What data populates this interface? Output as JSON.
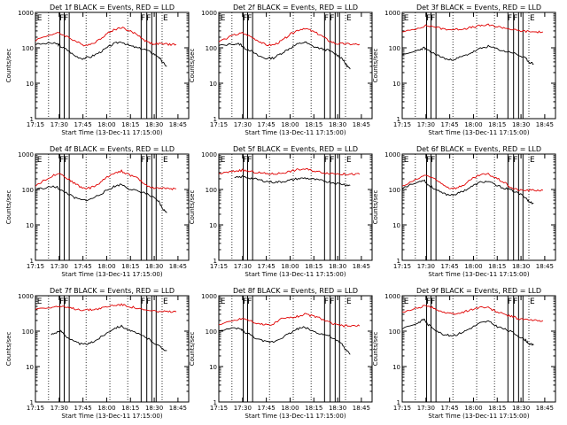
{
  "page": {
    "background": "#ffffff"
  },
  "colors": {
    "events": "#000000",
    "lld": "#e00000",
    "axis": "#000000"
  },
  "chart_data": [
    {
      "type": "line",
      "title": "Det 1f BLACK = Events, RED = LLD",
      "xlabel": "Start Time (13-Dec-11 17:15:00)",
      "ylabel": "Counts/sec",
      "x_ticks": [
        "17:15",
        "17:30",
        "17:45",
        "18:00",
        "18:15",
        "18:30",
        "18:45"
      ],
      "y_scale": "log",
      "ylim": [
        1,
        1000
      ],
      "y_ticks": [
        "1",
        "10",
        "100",
        "1000"
      ],
      "top_markers": [
        "E",
        "F",
        "F",
        "F",
        "F",
        "E"
      ],
      "series": [
        {
          "name": "Events",
          "color": "#000000",
          "x": [
            0.0,
            0.5,
            0.7,
            0.8,
            1.0,
            1.25,
            1.5,
            1.75,
            2.0,
            2.25,
            2.5,
            2.75,
            3.0,
            3.25,
            3.5,
            3.75,
            3.95,
            4.05,
            4.2
          ],
          "y": [
            125,
            135,
            130,
            110,
            90,
            60,
            50,
            55,
            70,
            95,
            130,
            150,
            115,
            100,
            90,
            70,
            55,
            40,
            30
          ]
        },
        {
          "name": "LLD",
          "color": "#e00000",
          "x": [
            0.0,
            0.5,
            0.75,
            1.0,
            1.25,
            1.5,
            1.75,
            2.0,
            2.25,
            2.5,
            2.75,
            3.0,
            3.25,
            3.5,
            3.75,
            4.0,
            4.25,
            4.5
          ],
          "y": [
            165,
            240,
            260,
            210,
            160,
            120,
            125,
            160,
            240,
            320,
            380,
            300,
            240,
            160,
            130,
            130,
            125,
            125
          ]
        }
      ]
    },
    {
      "type": "line",
      "title": "Det 2f BLACK = Events, RED = LLD",
      "xlabel": "Start Time (13-Dec-11 17:15:00)",
      "ylabel": "Counts/sec",
      "x_ticks": [
        "17:15",
        "17:30",
        "17:45",
        "18:00",
        "18:15",
        "18:30",
        "18:45"
      ],
      "y_scale": "log",
      "ylim": [
        1,
        1000
      ],
      "y_ticks": [
        "1",
        "10",
        "100",
        "1000"
      ],
      "top_markers": [
        "E",
        "F",
        "F",
        "F",
        "F",
        "E"
      ],
      "series": [
        {
          "name": "Events",
          "color": "#000000",
          "x": [
            0.0,
            0.5,
            0.7,
            0.8,
            1.0,
            1.25,
            1.5,
            1.75,
            2.0,
            2.25,
            2.5,
            2.75,
            3.0,
            3.25,
            3.5,
            3.75,
            3.95,
            4.05,
            4.2
          ],
          "y": [
            115,
            130,
            125,
            100,
            85,
            60,
            50,
            52,
            70,
            95,
            125,
            145,
            110,
            95,
            85,
            65,
            50,
            35,
            25
          ]
        },
        {
          "name": "LLD",
          "color": "#e00000",
          "x": [
            0.0,
            0.5,
            0.75,
            1.0,
            1.25,
            1.5,
            1.75,
            2.0,
            2.25,
            2.5,
            2.75,
            3.0,
            3.25,
            3.5,
            3.75,
            4.0,
            4.25,
            4.5
          ],
          "y": [
            150,
            230,
            260,
            210,
            160,
            120,
            120,
            155,
            230,
            310,
            360,
            290,
            230,
            160,
            130,
            130,
            125,
            125
          ]
        }
      ]
    },
    {
      "type": "line",
      "title": "Det 3f BLACK = Events, RED = LLD",
      "xlabel": "Start Time (13-Dec-11 17:15:00)",
      "ylabel": "Counts/sec",
      "x_ticks": [
        "17:15",
        "17:30",
        "17:45",
        "18:00",
        "18:15",
        "18:30",
        "18:45"
      ],
      "y_scale": "log",
      "ylim": [
        1,
        1000
      ],
      "y_ticks": [
        "1",
        "10",
        "100",
        "1000"
      ],
      "top_markers": [
        "E",
        "F",
        "F",
        "F",
        "F",
        "E"
      ],
      "series": [
        {
          "name": "Events",
          "color": "#000000",
          "x": [
            0.0,
            0.5,
            0.7,
            0.8,
            1.0,
            1.25,
            1.5,
            1.75,
            2.0,
            2.25,
            2.5,
            2.75,
            3.0,
            3.25,
            3.5,
            3.75,
            3.95,
            4.05,
            4.2
          ],
          "y": [
            60,
            85,
            100,
            85,
            70,
            55,
            45,
            50,
            60,
            75,
            95,
            110,
            95,
            80,
            75,
            60,
            50,
            40,
            35
          ]
        },
        {
          "name": "LLD",
          "color": "#e00000",
          "x": [
            0.0,
            0.5,
            0.75,
            1.0,
            1.25,
            1.5,
            1.75,
            2.0,
            2.25,
            2.5,
            2.75,
            3.0,
            3.25,
            3.5,
            3.75,
            4.0,
            4.25,
            4.5
          ],
          "y": [
            270,
            360,
            420,
            400,
            350,
            330,
            330,
            350,
            380,
            420,
            440,
            400,
            370,
            330,
            300,
            290,
            280,
            280
          ]
        }
      ]
    },
    {
      "type": "line",
      "title": "Det 4f BLACK = Events, RED = LLD",
      "xlabel": "Start Time (13-Dec-11 17:15:00)",
      "ylabel": "Counts/sec",
      "x_ticks": [
        "17:15",
        "17:30",
        "17:45",
        "18:00",
        "18:15",
        "18:30",
        "18:45"
      ],
      "y_scale": "log",
      "ylim": [
        1,
        1000
      ],
      "y_ticks": [
        "1",
        "10",
        "100",
        "1000"
      ],
      "top_markers": [
        "E",
        "F",
        "F",
        "F",
        "F",
        "E"
      ],
      "series": [
        {
          "name": "Events",
          "color": "#000000",
          "x": [
            0.0,
            0.5,
            0.7,
            0.8,
            1.0,
            1.25,
            1.5,
            1.75,
            2.0,
            2.25,
            2.5,
            2.75,
            3.0,
            3.25,
            3.5,
            3.75,
            3.95,
            4.05,
            4.2
          ],
          "y": [
            100,
            120,
            115,
            95,
            80,
            58,
            50,
            52,
            68,
            90,
            120,
            140,
            105,
            90,
            80,
            60,
            45,
            30,
            22
          ]
        },
        {
          "name": "LLD",
          "color": "#e00000",
          "x": [
            0.0,
            0.5,
            0.75,
            1.0,
            1.25,
            1.5,
            1.75,
            2.0,
            2.25,
            2.5,
            2.75,
            3.0,
            3.25,
            3.5,
            3.75,
            4.0,
            4.25,
            4.5
          ],
          "y": [
            130,
            230,
            300,
            210,
            150,
            110,
            110,
            140,
            210,
            290,
            330,
            260,
            210,
            140,
            110,
            110,
            105,
            105
          ]
        }
      ]
    },
    {
      "type": "line",
      "title": "Det 5f BLACK = Events, RED = LLD",
      "xlabel": "Start Time (13-Dec-11 17:15:00)",
      "ylabel": "Counts/sec",
      "x_ticks": [
        "17:15",
        "17:30",
        "17:45",
        "18:00",
        "18:15",
        "18:30",
        "18:45"
      ],
      "y_scale": "log",
      "ylim": [
        1,
        1000
      ],
      "y_ticks": [
        "1",
        "10",
        "100",
        "1000"
      ],
      "top_markers": [
        "E",
        "F",
        "F",
        "F",
        "F",
        "E"
      ],
      "series": [
        {
          "name": "Events",
          "color": "#000000",
          "x": [
            0.5,
            0.75,
            1.0,
            1.25,
            1.5,
            1.75,
            2.0,
            2.25,
            2.5,
            2.75,
            3.0,
            3.25,
            3.5,
            3.75,
            4.0,
            4.2
          ],
          "y": [
            210,
            230,
            210,
            190,
            170,
            160,
            165,
            180,
            200,
            210,
            195,
            180,
            165,
            150,
            140,
            130
          ]
        },
        {
          "name": "LLD",
          "color": "#e00000",
          "x": [
            0.0,
            0.25,
            0.5,
            0.75,
            1.0,
            1.25,
            1.5,
            1.75,
            2.0,
            2.25,
            2.5,
            2.75,
            3.0,
            3.25,
            3.5,
            3.75,
            4.0,
            4.25,
            4.5
          ],
          "y": [
            280,
            300,
            330,
            350,
            320,
            300,
            280,
            275,
            290,
            320,
            360,
            380,
            340,
            310,
            290,
            280,
            270,
            270,
            270
          ]
        }
      ]
    },
    {
      "type": "line",
      "title": "Det 6f BLACK = Events, RED = LLD",
      "xlabel": "Start Time (13-Dec-11 17:15:00)",
      "ylabel": "Counts/sec",
      "x_ticks": [
        "17:15",
        "17:30",
        "17:45",
        "18:00",
        "18:15",
        "18:30",
        "18:45"
      ],
      "y_scale": "log",
      "ylim": [
        1,
        1000
      ],
      "y_ticks": [
        "1",
        "10",
        "100",
        "1000"
      ],
      "top_markers": [
        "E",
        "F",
        "F",
        "F",
        "F",
        "E"
      ],
      "series": [
        {
          "name": "Events",
          "color": "#000000",
          "x": [
            0.0,
            0.5,
            0.7,
            0.8,
            1.0,
            1.25,
            1.5,
            1.75,
            2.0,
            2.25,
            2.5,
            2.75,
            3.0,
            3.25,
            3.5,
            3.75,
            3.95,
            4.05,
            4.2
          ],
          "y": [
            110,
            160,
            190,
            140,
            110,
            80,
            70,
            75,
            95,
            125,
            160,
            170,
            130,
            110,
            95,
            75,
            60,
            45,
            40
          ]
        },
        {
          "name": "LLD",
          "color": "#e00000",
          "x": [
            0.0,
            0.5,
            0.75,
            1.0,
            1.25,
            1.5,
            1.75,
            2.0,
            2.25,
            2.5,
            2.75,
            3.0,
            3.25,
            3.5,
            3.75,
            4.0,
            4.25,
            4.5
          ],
          "y": [
            120,
            200,
            260,
            200,
            150,
            110,
            110,
            140,
            200,
            260,
            270,
            210,
            160,
            110,
            95,
            95,
            95,
            95
          ]
        }
      ]
    },
    {
      "type": "line",
      "title": "Det 7f BLACK = Events, RED = LLD",
      "xlabel": "Start Time (13-Dec-11 17:15:00)",
      "ylabel": "Counts/sec",
      "x_ticks": [
        "17:15",
        "17:30",
        "17:45",
        "18:00",
        "18:15",
        "18:30",
        "18:45"
      ],
      "y_scale": "log",
      "ylim": [
        1,
        1000
      ],
      "y_ticks": [
        "1",
        "10",
        "100",
        "1000"
      ],
      "top_markers": [
        "E",
        "F",
        "F",
        "F",
        "F",
        "E"
      ],
      "series": [
        {
          "name": "Events",
          "color": "#000000",
          "x": [
            0.5,
            0.75,
            0.85,
            1.0,
            1.25,
            1.5,
            1.75,
            2.0,
            2.25,
            2.5,
            2.75,
            3.0,
            3.25,
            3.5,
            3.75,
            4.0,
            4.2
          ],
          "y": [
            80,
            100,
            95,
            70,
            50,
            42,
            45,
            60,
            85,
            120,
            140,
            105,
            85,
            70,
            50,
            35,
            28
          ]
        },
        {
          "name": "LLD",
          "color": "#e00000",
          "x": [
            0.0,
            0.5,
            0.75,
            1.0,
            1.25,
            1.5,
            1.75,
            2.0,
            2.25,
            2.5,
            2.75,
            3.0,
            3.25,
            3.5,
            3.75,
            4.0,
            4.25,
            4.5
          ],
          "y": [
            430,
            480,
            500,
            460,
            430,
            400,
            400,
            430,
            480,
            540,
            560,
            500,
            440,
            390,
            370,
            360,
            350,
            350
          ]
        }
      ]
    },
    {
      "type": "line",
      "title": "Det 8f BLACK = Events, RED = LLD",
      "xlabel": "Start Time (13-Dec-11 17:15:00)",
      "ylabel": "Counts/sec",
      "x_ticks": [
        "17:15",
        "17:30",
        "17:45",
        "18:00",
        "18:15",
        "18:30",
        "18:45"
      ],
      "y_scale": "log",
      "ylim": [
        1,
        1000
      ],
      "y_ticks": [
        "1",
        "10",
        "100",
        "1000"
      ],
      "top_markers": [
        "E",
        "F",
        "F",
        "F",
        "F",
        "E"
      ],
      "series": [
        {
          "name": "Events",
          "color": "#000000",
          "x": [
            0.0,
            0.5,
            0.7,
            0.8,
            1.0,
            1.25,
            1.5,
            1.75,
            2.0,
            2.25,
            2.5,
            2.75,
            3.0,
            3.25,
            3.5,
            3.75,
            3.95,
            4.05,
            4.2
          ],
          "y": [
            100,
            120,
            115,
            95,
            80,
            58,
            50,
            50,
            65,
            85,
            115,
            130,
            100,
            85,
            75,
            55,
            42,
            30,
            22
          ]
        },
        {
          "name": "LLD",
          "color": "#e00000",
          "x": [
            0.0,
            0.5,
            0.75,
            1.0,
            1.25,
            1.5,
            1.75,
            2.0,
            2.25,
            2.5,
            2.75,
            3.0,
            3.25,
            3.5,
            3.75,
            4.0,
            4.25,
            4.5
          ],
          "y": [
            150,
            200,
            230,
            200,
            160,
            150,
            160,
            220,
            240,
            260,
            300,
            270,
            230,
            180,
            150,
            140,
            140,
            140
          ]
        }
      ]
    },
    {
      "type": "line",
      "title": "Det 9f BLACK = Events, RED = LLD",
      "xlabel": "Start Time (13-Dec-11 17:15:00)",
      "ylabel": "Counts/sec",
      "x_ticks": [
        "17:15",
        "17:30",
        "17:45",
        "18:00",
        "18:15",
        "18:30",
        "18:45"
      ],
      "y_scale": "log",
      "ylim": [
        1,
        1000
      ],
      "y_ticks": [
        "1",
        "10",
        "100",
        "1000"
      ],
      "top_markers": [
        "E",
        "F",
        "F",
        "F",
        "F",
        "E"
      ],
      "series": [
        {
          "name": "Events",
          "color": "#000000",
          "x": [
            0.0,
            0.5,
            0.7,
            0.8,
            1.0,
            1.25,
            1.5,
            1.75,
            2.0,
            2.25,
            2.5,
            2.75,
            3.0,
            3.25,
            3.5,
            3.75,
            3.95,
            4.05,
            4.2
          ],
          "y": [
            120,
            170,
            220,
            160,
            120,
            85,
            75,
            80,
            100,
            130,
            170,
            190,
            140,
            115,
            95,
            70,
            55,
            45,
            40
          ]
        },
        {
          "name": "LLD",
          "color": "#e00000",
          "x": [
            0.0,
            0.5,
            0.75,
            1.0,
            1.25,
            1.5,
            1.75,
            2.0,
            2.25,
            2.5,
            2.75,
            3.0,
            3.25,
            3.5,
            3.75,
            4.0,
            4.25,
            4.5
          ],
          "y": [
            330,
            460,
            520,
            450,
            360,
            310,
            310,
            350,
            420,
            480,
            460,
            360,
            300,
            260,
            220,
            210,
            200,
            200
          ]
        }
      ]
    }
  ]
}
